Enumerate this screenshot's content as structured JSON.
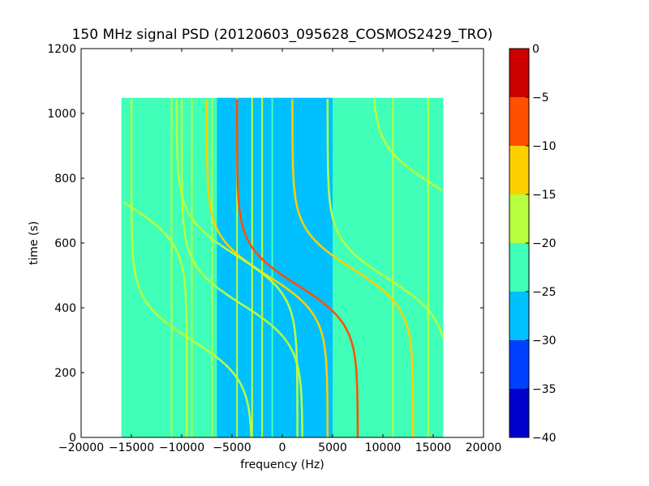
{
  "chart_data": {
    "type": "heatmap",
    "title": "150 MHz signal PSD (20120603_095628_COSMOS2429_TRO)",
    "xlabel": "frequency (Hz)",
    "ylabel": "time (s)",
    "xlim": [
      -20000,
      20000
    ],
    "ylim": [
      0,
      1200
    ],
    "x_ticks": [
      -20000,
      -15000,
      -10000,
      -5000,
      0,
      5000,
      10000,
      15000,
      20000
    ],
    "x_tick_labels": [
      "−20000",
      "−15000",
      "−10000",
      "−5000",
      "0",
      "5000",
      "10000",
      "15000",
      "20000"
    ],
    "y_ticks": [
      0,
      200,
      400,
      600,
      800,
      1000,
      1200
    ],
    "y_tick_labels": [
      "0",
      "200",
      "400",
      "600",
      "800",
      "1000",
      "1200"
    ],
    "data_extent": {
      "x": [
        -16000,
        16000
      ],
      "y": [
        0,
        1048
      ]
    },
    "background_level": -22.5,
    "center_band": {
      "x": [
        -6500,
        5000
      ],
      "level": -27.5
    },
    "colorbar": {
      "levels": [
        -40,
        -35,
        -30,
        -25,
        -20,
        -15,
        -10,
        -5,
        0
      ],
      "tick_labels": [
        "−40",
        "−35",
        "−30",
        "−25",
        "−20",
        "−15",
        "−10",
        "−5",
        "0"
      ],
      "colors": [
        "#0000cd",
        "#0040ff",
        "#00c0ff",
        "#40ffb8",
        "#b8ff40",
        "#ffd000",
        "#ff5000",
        "#cd0000"
      ]
    },
    "grid": false,
    "traces": [
      {
        "fc": 1500,
        "tc": 470,
        "level": -7.5
      },
      {
        "fc": 7000,
        "tc": 520,
        "level": -12.5
      },
      {
        "fc": -1500,
        "tc": 500,
        "level": -12.5
      },
      {
        "fc": -4500,
        "tc": 560,
        "level": -17.5
      },
      {
        "fc": 10500,
        "tc": 490,
        "level": -17.5
      },
      {
        "fc": -9000,
        "tc": 300,
        "level": -17.5
      },
      {
        "fc": -4000,
        "tc": 410,
        "level": -17.5
      },
      {
        "fc": 15000,
        "tc": 780,
        "level": -17.5
      },
      {
        "fc": -15500,
        "tc": 720,
        "level": -17.5
      }
    ],
    "vertical_lines": [
      {
        "x": -11000,
        "level": -20
      },
      {
        "x": -9000,
        "level": -17.5
      },
      {
        "x": -7000,
        "level": -20
      },
      {
        "x": -4500,
        "level": -20
      },
      {
        "x": -3000,
        "level": -20
      },
      {
        "x": -2000,
        "level": -20
      },
      {
        "x": -1000,
        "level": -22.5
      },
      {
        "x": 11000,
        "level": -17.5
      },
      {
        "x": 14500,
        "level": -20
      }
    ]
  }
}
